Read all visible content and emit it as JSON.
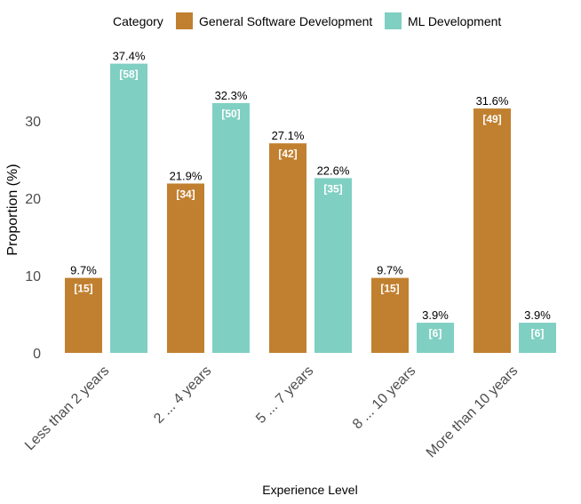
{
  "chart_data": {
    "type": "bar",
    "xlabel": "Experience Level",
    "ylabel": "Proportion (%)",
    "ylim": [
      0,
      38
    ],
    "yticks": [
      0,
      10,
      20,
      30
    ],
    "grid": false,
    "legend": {
      "title": "Category",
      "position": "top"
    },
    "categories": [
      "Less than 2 years",
      "2 ... 4 years",
      "5 ... 7 years",
      "8 ... 10 years",
      "More than 10 years"
    ],
    "series": [
      {
        "name": "General Software Development",
        "color": "#C1802F",
        "values": [
          9.7,
          21.9,
          27.1,
          9.7,
          31.6
        ],
        "pct_labels": [
          "9.7%",
          "21.9%",
          "27.1%",
          "9.7%",
          "31.6%"
        ],
        "count_labels": [
          "[15]",
          "[34]",
          "[42]",
          "[15]",
          "[49]"
        ]
      },
      {
        "name": "ML Development",
        "color": "#80CFC3",
        "values": [
          37.4,
          32.3,
          22.6,
          3.9,
          3.9
        ],
        "pct_labels": [
          "37.4%",
          "32.3%",
          "22.6%",
          "3.9%",
          "3.9%"
        ],
        "count_labels": [
          "[58]",
          "[50]",
          "[35]",
          "[6]",
          "[6]"
        ]
      }
    ]
  }
}
